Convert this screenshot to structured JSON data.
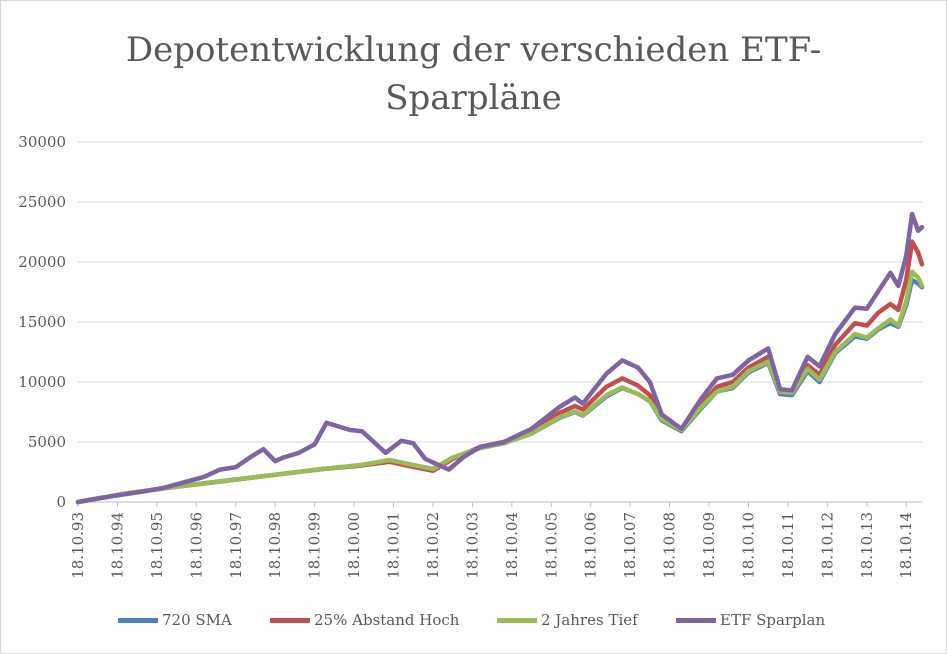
{
  "chart_data": {
    "type": "line",
    "title": "Depotentwicklung der verschieden ETF-Sparpläne",
    "title_lines": [
      "Depotentwicklung der verschieden ETF-",
      "Sparpläne"
    ],
    "xlabel": "",
    "ylabel": "",
    "ylim": [
      0,
      30000
    ],
    "y_ticks": [
      0,
      5000,
      10000,
      15000,
      20000,
      25000,
      30000
    ],
    "x_tick_labels": [
      "18.10.93",
      "18.10.94",
      "18.10.95",
      "18.10.96",
      "18.10.97",
      "18.10.98",
      "18.10.99",
      "18.10.00",
      "18.10.01",
      "18.10.02",
      "18.10.03",
      "18.10.04",
      "18.10.05",
      "18.10.06",
      "18.10.07",
      "18.10.08",
      "18.10.09",
      "18.10.10",
      "18.10.11",
      "18.10.12",
      "18.10.13",
      "18.10.14"
    ],
    "x_range": [
      1993.8,
      2015.2
    ],
    "grid": "horizontal",
    "legend_position": "bottom",
    "series": [
      {
        "name": "720 SMA",
        "color": "#4f81bd",
        "points": [
          [
            1993.8,
            0
          ],
          [
            1995,
            700
          ],
          [
            1996,
            1150
          ],
          [
            1997,
            1550
          ],
          [
            1998,
            1950
          ],
          [
            1999,
            2350
          ],
          [
            2000,
            2750
          ],
          [
            2001,
            3050
          ],
          [
            2001.7,
            3450
          ],
          [
            2002.2,
            3100
          ],
          [
            2002.8,
            2700
          ],
          [
            2003.3,
            3700
          ],
          [
            2004,
            4500
          ],
          [
            2004.6,
            4900
          ],
          [
            2005.3,
            5700
          ],
          [
            2006,
            7000
          ],
          [
            2006.4,
            7500
          ],
          [
            2006.6,
            7200
          ],
          [
            2007.2,
            8800
          ],
          [
            2007.6,
            9500
          ],
          [
            2008,
            9000
          ],
          [
            2008.3,
            8400
          ],
          [
            2008.6,
            6800
          ],
          [
            2009.1,
            5900
          ],
          [
            2009.6,
            7800
          ],
          [
            2010,
            9200
          ],
          [
            2010.4,
            9500
          ],
          [
            2010.8,
            10800
          ],
          [
            2011.3,
            11600
          ],
          [
            2011.6,
            9000
          ],
          [
            2011.9,
            8900
          ],
          [
            2012.3,
            10900
          ],
          [
            2012.6,
            10000
          ],
          [
            2013,
            12400
          ],
          [
            2013.5,
            13800
          ],
          [
            2013.8,
            13600
          ],
          [
            2014.1,
            14400
          ],
          [
            2014.4,
            14900
          ],
          [
            2014.6,
            14600
          ],
          [
            2014.8,
            16400
          ],
          [
            2014.95,
            18500
          ],
          [
            2015.1,
            18200
          ],
          [
            2015.2,
            17900
          ]
        ]
      },
      {
        "name": "25% Abstand Hoch",
        "color": "#c0504d",
        "points": [
          [
            1993.8,
            0
          ],
          [
            1995,
            700
          ],
          [
            1996,
            1150
          ],
          [
            1997,
            1550
          ],
          [
            1998,
            1950
          ],
          [
            1999,
            2350
          ],
          [
            2000,
            2750
          ],
          [
            2001,
            3050
          ],
          [
            2001.7,
            3350
          ],
          [
            2002.2,
            3000
          ],
          [
            2002.8,
            2600
          ],
          [
            2003.3,
            3600
          ],
          [
            2004,
            4600
          ],
          [
            2004.6,
            5000
          ],
          [
            2005.3,
            5900
          ],
          [
            2006,
            7400
          ],
          [
            2006.4,
            8000
          ],
          [
            2006.6,
            7700
          ],
          [
            2007.2,
            9600
          ],
          [
            2007.6,
            10300
          ],
          [
            2008,
            9700
          ],
          [
            2008.3,
            8900
          ],
          [
            2008.6,
            6900
          ],
          [
            2009.1,
            6000
          ],
          [
            2009.6,
            8100
          ],
          [
            2010,
            9600
          ],
          [
            2010.4,
            10000
          ],
          [
            2010.8,
            11200
          ],
          [
            2011.3,
            12100
          ],
          [
            2011.6,
            9200
          ],
          [
            2011.9,
            9100
          ],
          [
            2012.3,
            11400
          ],
          [
            2012.6,
            10600
          ],
          [
            2013,
            13100
          ],
          [
            2013.5,
            14900
          ],
          [
            2013.8,
            14700
          ],
          [
            2014.1,
            15800
          ],
          [
            2014.4,
            16500
          ],
          [
            2014.6,
            16000
          ],
          [
            2014.8,
            18500
          ],
          [
            2014.95,
            21700
          ],
          [
            2015.1,
            20800
          ],
          [
            2015.2,
            19800
          ]
        ]
      },
      {
        "name": "2 Jahres Tief",
        "color": "#9bbb59",
        "points": [
          [
            1993.8,
            0
          ],
          [
            1995,
            700
          ],
          [
            1996,
            1150
          ],
          [
            1997,
            1550
          ],
          [
            1998,
            1950
          ],
          [
            1999,
            2350
          ],
          [
            2000,
            2750
          ],
          [
            2001,
            3100
          ],
          [
            2001.7,
            3500
          ],
          [
            2002.2,
            3150
          ],
          [
            2002.8,
            2750
          ],
          [
            2003.3,
            3700
          ],
          [
            2004,
            4500
          ],
          [
            2004.6,
            4900
          ],
          [
            2005.3,
            5700
          ],
          [
            2006,
            7050
          ],
          [
            2006.4,
            7550
          ],
          [
            2006.6,
            7250
          ],
          [
            2007.2,
            8900
          ],
          [
            2007.6,
            9550
          ],
          [
            2008,
            9000
          ],
          [
            2008.3,
            8400
          ],
          [
            2008.6,
            6900
          ],
          [
            2009.1,
            6000
          ],
          [
            2009.6,
            7900
          ],
          [
            2010,
            9200
          ],
          [
            2010.4,
            9600
          ],
          [
            2010.8,
            10900
          ],
          [
            2011.3,
            11700
          ],
          [
            2011.6,
            9200
          ],
          [
            2011.9,
            9100
          ],
          [
            2012.3,
            11100
          ],
          [
            2012.6,
            10200
          ],
          [
            2013,
            12500
          ],
          [
            2013.5,
            14000
          ],
          [
            2013.8,
            13700
          ],
          [
            2014.1,
            14500
          ],
          [
            2014.4,
            15200
          ],
          [
            2014.6,
            14700
          ],
          [
            2014.8,
            16700
          ],
          [
            2014.95,
            19200
          ],
          [
            2015.1,
            18700
          ],
          [
            2015.2,
            18000
          ]
        ]
      },
      {
        "name": "ETF Sparplan",
        "color": "#8064a2",
        "points": [
          [
            1993.8,
            0
          ],
          [
            1994.5,
            400
          ],
          [
            1995,
            650
          ],
          [
            1995.5,
            900
          ],
          [
            1996,
            1200
          ],
          [
            1996.5,
            1650
          ],
          [
            1997,
            2100
          ],
          [
            1997.4,
            2700
          ],
          [
            1997.8,
            2900
          ],
          [
            1998.2,
            3800
          ],
          [
            1998.5,
            4400
          ],
          [
            1998.8,
            3400
          ],
          [
            1999,
            3700
          ],
          [
            1999.4,
            4100
          ],
          [
            1999.8,
            4800
          ],
          [
            2000.1,
            6600
          ],
          [
            2000.4,
            6300
          ],
          [
            2000.7,
            6000
          ],
          [
            2001,
            5900
          ],
          [
            2001.3,
            5000
          ],
          [
            2001.6,
            4100
          ],
          [
            2002,
            5100
          ],
          [
            2002.3,
            4900
          ],
          [
            2002.6,
            3600
          ],
          [
            2003,
            3000
          ],
          [
            2003.2,
            2700
          ],
          [
            2003.6,
            3800
          ],
          [
            2004,
            4600
          ],
          [
            2004.6,
            5000
          ],
          [
            2005.3,
            6100
          ],
          [
            2006,
            7900
          ],
          [
            2006.4,
            8700
          ],
          [
            2006.6,
            8200
          ],
          [
            2007.2,
            10700
          ],
          [
            2007.6,
            11800
          ],
          [
            2008,
            11200
          ],
          [
            2008.3,
            10000
          ],
          [
            2008.6,
            7300
          ],
          [
            2009.1,
            6100
          ],
          [
            2009.6,
            8600
          ],
          [
            2010,
            10300
          ],
          [
            2010.4,
            10600
          ],
          [
            2010.8,
            11800
          ],
          [
            2011.3,
            12800
          ],
          [
            2011.6,
            9400
          ],
          [
            2011.9,
            9300
          ],
          [
            2012.3,
            12100
          ],
          [
            2012.6,
            11300
          ],
          [
            2013,
            14000
          ],
          [
            2013.5,
            16200
          ],
          [
            2013.8,
            16100
          ],
          [
            2014.1,
            17600
          ],
          [
            2014.4,
            19100
          ],
          [
            2014.6,
            18000
          ],
          [
            2014.8,
            20500
          ],
          [
            2014.95,
            24000
          ],
          [
            2015.1,
            22600
          ],
          [
            2015.2,
            22900
          ]
        ]
      }
    ]
  }
}
